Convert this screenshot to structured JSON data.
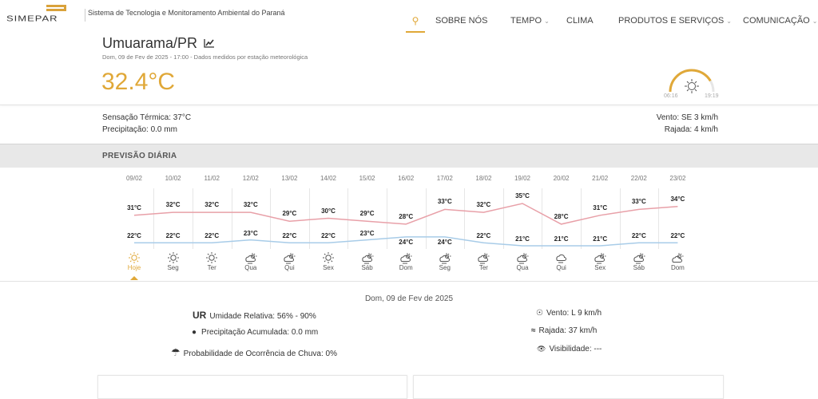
{
  "header": {
    "logo_text": "SIMEPAR",
    "tagline": "Sistema de Tecnologia e Monitoramento Ambiental do Paraná",
    "nav": [
      {
        "label": "SOBRE NÓS",
        "dropdown": false
      },
      {
        "label": "TEMPO",
        "dropdown": true
      },
      {
        "label": "CLIMA",
        "dropdown": false
      },
      {
        "label": "PRODUTOS E SERVIÇOS",
        "dropdown": true
      },
      {
        "label": "COMUNICAÇÃO",
        "dropdown": true
      }
    ],
    "search_icon": "search-icon"
  },
  "current": {
    "city": "Umuarama/PR",
    "subtitle": "Dom, 09 de Fev de 2025 - 17:00 - Dados medidos por estação meteorológica",
    "temperature": "32.4°C",
    "sunrise": "06:16",
    "sunset": "19:19",
    "sun_progress": 0.83,
    "feels_like": "Sensação Térmica: 37°C",
    "precipitation": "Precipitação: 0.0 mm",
    "wind": "Vento: SE 3 km/h",
    "gust": "Rajada: 4 km/h"
  },
  "forecast": {
    "title": "PREVISÃO DIÁRIA",
    "chart_data": {
      "type": "line",
      "categories": [
        "09/02",
        "10/02",
        "11/02",
        "12/02",
        "13/02",
        "14/02",
        "15/02",
        "16/02",
        "17/02",
        "18/02",
        "19/02",
        "20/02",
        "21/02",
        "22/02",
        "23/02"
      ],
      "days": [
        "Hoje",
        "Seg",
        "Ter",
        "Qua",
        "Qui",
        "Sex",
        "Sáb",
        "Dom",
        "Seg",
        "Ter",
        "Qua",
        "Qui",
        "Sex",
        "Sáb",
        "Dom"
      ],
      "icons": [
        "sun",
        "sun",
        "sun",
        "sun-cloud-rain",
        "sun-cloud-rain",
        "sun",
        "sun-cloud-rain",
        "sun-cloud-rain",
        "sun-cloud-rain",
        "sun-cloud-rain",
        "sun-cloud-rain",
        "cloud-rain",
        "sun-cloud-rain",
        "sun-cloud-rain",
        "sun-cloud"
      ],
      "series": [
        {
          "name": "max",
          "color": "#e8a0a8",
          "values": [
            31,
            32,
            32,
            32,
            29,
            30,
            29,
            28,
            33,
            32,
            35,
            28,
            31,
            33,
            34
          ]
        },
        {
          "name": "min",
          "color": "#a8cce8",
          "values": [
            22,
            22,
            22,
            23,
            22,
            22,
            23,
            24,
            24,
            22,
            21,
            21,
            21,
            22,
            22
          ]
        }
      ],
      "unit": "°C"
    }
  },
  "detail": {
    "date": "Dom, 09 de Fev de 2025",
    "ur_abbr": "UR",
    "humidity": "Umidade Relativa: 56% - 90%",
    "precip": "Precipitação Acumulada: 0.0 mm",
    "rain_prob": "Probabilidade de Ocorrência de Chuva: 0%",
    "wind": "Vento: L 9 km/h",
    "gust": "Rajada: 37 km/h",
    "visibility": "Visibilidade: ---"
  },
  "accent": "#e0a838"
}
